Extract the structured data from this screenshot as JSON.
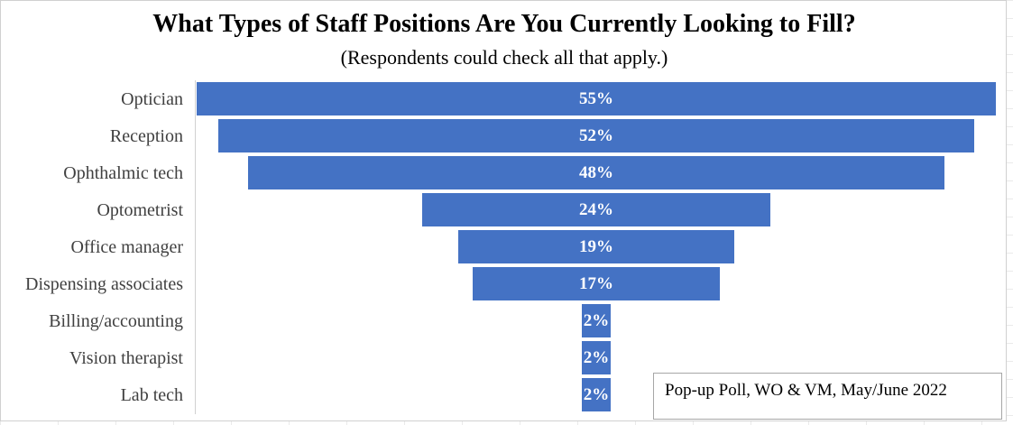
{
  "chart_data": {
    "type": "bar",
    "orientation": "horizontal-funnel",
    "title": "What Types of Staff Positions Are You Currently Looking to Fill?",
    "subtitle": "(Respondents could check all that apply.)",
    "categories": [
      "Optician",
      "Reception",
      "Ophthalmic tech",
      "Optometrist",
      "Office manager",
      "Dispensing associates",
      "Billing/accounting",
      "Vision therapist",
      "Lab tech"
    ],
    "values": [
      55,
      52,
      48,
      24,
      19,
      17,
      2,
      2,
      2
    ],
    "data_labels": [
      "55%",
      "52%",
      "48%",
      "24%",
      "19%",
      "17%",
      "2%",
      "2%",
      "2%"
    ],
    "value_unit": "%",
    "bar_color": "#4472c4",
    "label_color": "#ffffff",
    "grid": false,
    "legend": "none"
  },
  "annotation": {
    "text": "Pop-up Poll, WO & VM, May/June 2022",
    "placement": "bottom-right"
  }
}
